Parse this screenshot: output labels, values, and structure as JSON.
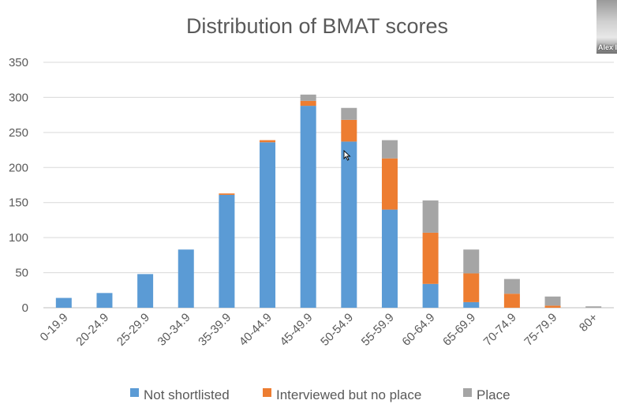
{
  "window": {
    "participant_name": "Alex I"
  },
  "chart_data": {
    "type": "bar",
    "stacked": true,
    "title": "Distribution of BMAT scores",
    "xlabel": "",
    "ylabel": "",
    "ylim": [
      0,
      350
    ],
    "yticks": [
      0,
      50,
      100,
      150,
      200,
      250,
      300,
      350
    ],
    "grid": true,
    "legend_position": "bottom",
    "categories": [
      "0-19.9",
      "20-24.9",
      "25-29.9",
      "30-34.9",
      "35-39.9",
      "40-44.9",
      "45-49.9",
      "50-54.9",
      "55-59.9",
      "60-64.9",
      "65-69.9",
      "70-74.9",
      "75-79.9",
      "80+"
    ],
    "series": [
      {
        "name": "Not shortlisted",
        "color": "#5b9bd5",
        "values": [
          14,
          21,
          48,
          83,
          161,
          236,
          288,
          237,
          140,
          34,
          8,
          0,
          0,
          0
        ]
      },
      {
        "name": "Interviewed but no place",
        "color": "#ed7d31",
        "values": [
          0,
          0,
          0,
          0,
          2,
          3,
          7,
          31,
          73,
          73,
          41,
          20,
          3,
          0
        ]
      },
      {
        "name": "Place",
        "color": "#a5a5a5",
        "values": [
          0,
          0,
          0,
          0,
          0,
          0,
          9,
          17,
          26,
          46,
          34,
          21,
          13,
          2
        ]
      }
    ]
  }
}
